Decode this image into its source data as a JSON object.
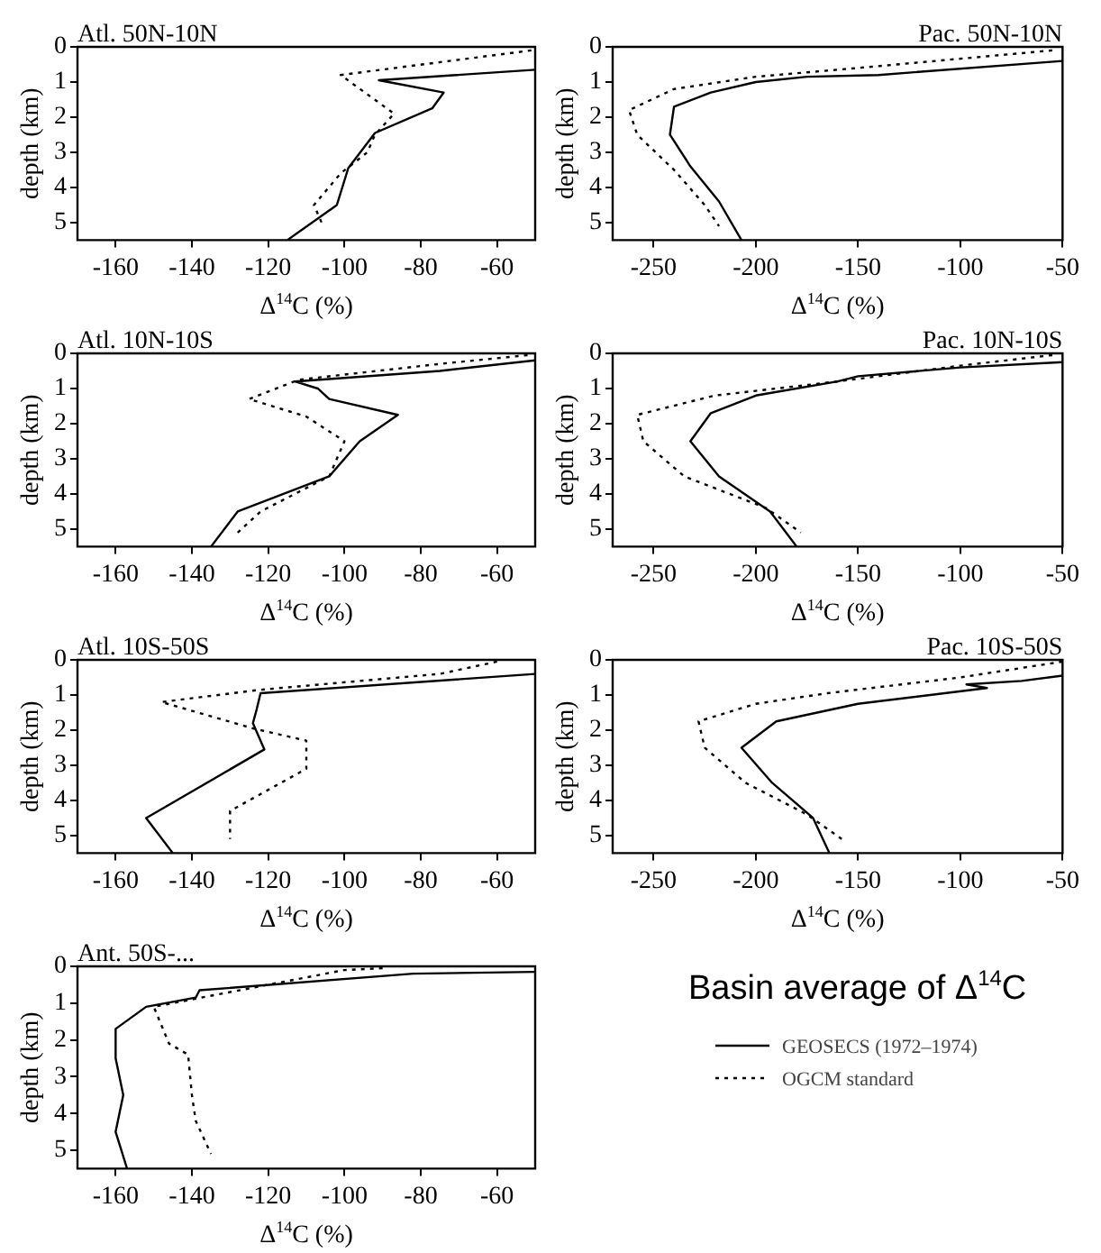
{
  "chart_data": [
    {
      "type": "line",
      "title": "Atl. 50N-10N",
      "xlabel": "Δ$^{14}$C (%)",
      "ylabel": "depth (km)",
      "xlim": [
        -170,
        -50
      ],
      "xticks": [
        -160,
        -140,
        -120,
        -100,
        -80,
        -60
      ],
      "ylim": [
        5.5,
        0
      ],
      "yticks": [
        0,
        1,
        2,
        3,
        4,
        5
      ],
      "series": [
        {
          "color": "#000000",
          "line_style": "solid",
          "x": [
            -50,
            -91,
            -74,
            -77,
            -92,
            -99,
            -102,
            -115
          ],
          "values": [
            0.65,
            0.95,
            1.3,
            1.75,
            2.45,
            3.45,
            4.5,
            5.5
          ]
        },
        {
          "color": "#000000",
          "line_style": "dotted",
          "x": [
            -51,
            -101,
            -87,
            -92,
            -94,
            -101,
            -108,
            -106
          ],
          "values": [
            0.1,
            0.8,
            1.9,
            2.5,
            3.0,
            3.6,
            4.5,
            5.0
          ]
        }
      ]
    },
    {
      "type": "line",
      "title": "Pac. 50N-10N",
      "xlabel": "Δ$^{14}$C (%)",
      "ylabel": "depth (km)",
      "xlim": [
        -270,
        -50
      ],
      "xticks": [
        -250,
        -200,
        -150,
        -100,
        -50
      ],
      "ylim": [
        5.5,
        0
      ],
      "yticks": [
        0,
        1,
        2,
        3,
        4,
        5
      ],
      "series": [
        {
          "color": "#000000",
          "line_style": "solid",
          "x": [
            -50,
            -140,
            -175,
            -200,
            -222,
            -240,
            -242,
            -232,
            -218,
            -207
          ],
          "values": [
            0.4,
            0.8,
            0.85,
            1.0,
            1.3,
            1.7,
            2.5,
            3.4,
            4.4,
            5.5
          ]
        },
        {
          "color": "#000000",
          "line_style": "dotted",
          "x": [
            -55,
            -150,
            -200,
            -240,
            -262,
            -258,
            -240,
            -225,
            -218
          ],
          "values": [
            0.1,
            0.6,
            0.85,
            1.2,
            1.8,
            2.5,
            3.5,
            4.5,
            5.1
          ]
        }
      ]
    },
    {
      "type": "line",
      "title": "Atl. 10N-10S",
      "xlabel": "Δ$^{14}$C (%)",
      "ylabel": "depth (km)",
      "xlim": [
        -170,
        -50
      ],
      "xticks": [
        -160,
        -140,
        -120,
        -100,
        -80,
        -60
      ],
      "ylim": [
        5.5,
        0
      ],
      "yticks": [
        0,
        1,
        2,
        3,
        4,
        5
      ],
      "series": [
        {
          "color": "#000000",
          "line_style": "solid",
          "x": [
            -50,
            -75,
            -113,
            -107,
            -104,
            -86,
            -96,
            -104,
            -128,
            -135
          ],
          "values": [
            0.2,
            0.5,
            0.8,
            1.0,
            1.3,
            1.75,
            2.5,
            3.5,
            4.5,
            5.5
          ]
        },
        {
          "color": "#000000",
          "line_style": "dotted",
          "x": [
            -52,
            -75,
            -112,
            -125,
            -110,
            -100,
            -104,
            -122,
            -128
          ],
          "values": [
            0.05,
            0.3,
            0.75,
            1.3,
            1.8,
            2.5,
            3.5,
            4.5,
            5.1
          ]
        }
      ]
    },
    {
      "type": "line",
      "title": "Pac. 10N-10S",
      "xlabel": "Δ$^{14}$C (%)",
      "ylabel": "depth (km)",
      "xlim": [
        -270,
        -50
      ],
      "xticks": [
        -250,
        -200,
        -150,
        -100,
        -50
      ],
      "ylim": [
        5.5,
        0
      ],
      "yticks": [
        0,
        1,
        2,
        3,
        4,
        5
      ],
      "series": [
        {
          "color": "#000000",
          "line_style": "solid",
          "x": [
            -50,
            -100,
            -150,
            -160,
            -200,
            -222,
            -232,
            -218,
            -193,
            -180
          ],
          "values": [
            0.25,
            0.4,
            0.65,
            0.8,
            1.2,
            1.7,
            2.5,
            3.5,
            4.5,
            5.5
          ]
        },
        {
          "color": "#000000",
          "line_style": "dotted",
          "x": [
            -55,
            -100,
            -160,
            -220,
            -258,
            -255,
            -235,
            -195,
            -178
          ],
          "values": [
            0.05,
            0.35,
            0.8,
            1.2,
            1.75,
            2.5,
            3.5,
            4.4,
            5.1
          ]
        }
      ]
    },
    {
      "type": "line",
      "title": "Atl. 10S-50S",
      "xlabel": "Δ$^{14}$C (%)",
      "ylabel": "depth (km)",
      "xlim": [
        -170,
        -50
      ],
      "xticks": [
        -160,
        -140,
        -120,
        -100,
        -80,
        -60
      ],
      "ylim": [
        5.5,
        0
      ],
      "yticks": [
        0,
        1,
        2,
        3,
        4,
        5
      ],
      "series": [
        {
          "color": "#000000",
          "line_style": "solid",
          "x": [
            -50,
            -122,
            -123,
            -124,
            -121,
            -152,
            -145
          ],
          "values": [
            0.4,
            0.95,
            1.4,
            1.8,
            2.55,
            4.5,
            5.5
          ]
        },
        {
          "color": "#000000",
          "line_style": "dotted",
          "x": [
            -60,
            -75,
            -122,
            -148,
            -124,
            -110,
            -110,
            -130,
            -130
          ],
          "values": [
            0.05,
            0.4,
            0.85,
            1.2,
            1.95,
            2.3,
            3.1,
            4.3,
            5.1
          ]
        }
      ]
    },
    {
      "type": "line",
      "title": "Pac. 10S-50S",
      "xlabel": "Δ$^{14}$C (%)",
      "ylabel": "depth (km)",
      "xlim": [
        -270,
        -50
      ],
      "xticks": [
        -250,
        -200,
        -150,
        -100,
        -50
      ],
      "ylim": [
        5.5,
        0
      ],
      "yticks": [
        0,
        1,
        2,
        3,
        4,
        5
      ],
      "series": [
        {
          "color": "#000000",
          "line_style": "solid",
          "x": [
            -50,
            -70,
            -97,
            -87,
            -150,
            -190,
            -207,
            -192,
            -172,
            -164
          ],
          "values": [
            0.45,
            0.6,
            0.7,
            0.8,
            1.25,
            1.75,
            2.5,
            3.5,
            4.5,
            5.5
          ]
        },
        {
          "color": "#000000",
          "line_style": "dotted",
          "x": [
            -50,
            -100,
            -165,
            -200,
            -228,
            -225,
            -205,
            -175,
            -158
          ],
          "values": [
            0.05,
            0.5,
            0.95,
            1.25,
            1.75,
            2.5,
            3.5,
            4.4,
            5.1
          ]
        }
      ]
    },
    {
      "type": "line",
      "title": "Ant. 50S-...",
      "xlabel": "Δ$^{14}$C (%)",
      "ylabel": "depth (km)",
      "xlim": [
        -170,
        -50
      ],
      "xticks": [
        -160,
        -140,
        -120,
        -100,
        -80,
        -60
      ],
      "ylim": [
        5.5,
        0
      ],
      "yticks": [
        0,
        1,
        2,
        3,
        4,
        5
      ],
      "legend": "right",
      "legend_title": "Basin average of Δ$^{14}$C",
      "series": [
        {
          "name": "GEOSECS (1972–1974)",
          "color": "#000000",
          "line_style": "solid",
          "x": [
            -50,
            -82,
            -138,
            -139,
            -152,
            -160,
            -160,
            -158,
            -160,
            -157
          ],
          "values": [
            0.15,
            0.2,
            0.65,
            0.85,
            1.1,
            1.7,
            2.5,
            3.5,
            4.5,
            5.5
          ]
        },
        {
          "name": "OGCM standard",
          "color": "#000000",
          "line_style": "dotted",
          "x": [
            -90,
            -100,
            -120,
            -150,
            -148,
            -146,
            -141,
            -140,
            -139,
            -135
          ],
          "values": [
            0.05,
            0.1,
            0.5,
            1.1,
            1.6,
            2.1,
            2.4,
            3.5,
            4.2,
            5.1
          ]
        }
      ]
    }
  ]
}
